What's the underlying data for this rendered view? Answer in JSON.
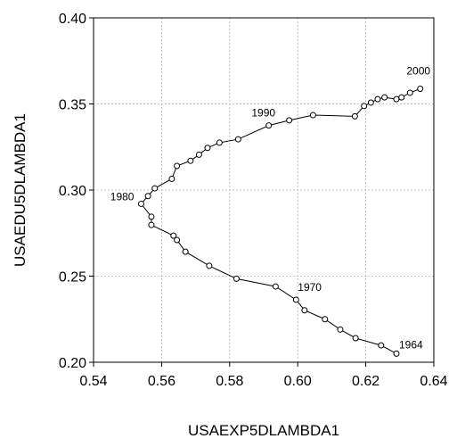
{
  "chart_data": {
    "type": "scatter",
    "title": "",
    "xlabel": "USAEXP5DLAMBDA1",
    "ylabel": "USAEDU5DLAMBDA1",
    "xlim": [
      0.54,
      0.64
    ],
    "ylim": [
      0.2,
      0.4
    ],
    "x_ticks": [
      "0.54",
      "0.56",
      "0.58",
      "0.60",
      "0.62",
      "0.64"
    ],
    "y_ticks": [
      "0.20",
      "0.25",
      "0.30",
      "0.35",
      "0.40"
    ],
    "x_tick_values": [
      0.54,
      0.56,
      0.58,
      0.6,
      0.62,
      0.64
    ],
    "y_tick_values": [
      0.2,
      0.25,
      0.3,
      0.35,
      0.4
    ],
    "grid": true,
    "connected": true,
    "marker": "open-circle",
    "series": [
      {
        "x": [
          0.629,
          0.6245,
          0.617,
          0.6125,
          0.608,
          0.602,
          0.5995,
          0.5935,
          0.582,
          0.574,
          0.567,
          0.5645,
          0.5635,
          0.557,
          0.557,
          0.554,
          0.556,
          0.558,
          0.563,
          0.5645,
          0.5685,
          0.571,
          0.5735,
          0.577,
          0.5825,
          0.5915,
          0.5975,
          0.6045,
          0.6168,
          0.6195,
          0.6215,
          0.6235,
          0.6255,
          0.629,
          0.6305,
          0.633,
          0.636
        ],
        "y": [
          0.205,
          0.2098,
          0.214,
          0.219,
          0.225,
          0.2302,
          0.2363,
          0.244,
          0.2485,
          0.256,
          0.2642,
          0.271,
          0.2735,
          0.2797,
          0.2845,
          0.292,
          0.2965,
          0.301,
          0.3065,
          0.314,
          0.317,
          0.3205,
          0.3245,
          0.3275,
          0.3295,
          0.3375,
          0.3405,
          0.3435,
          0.3428,
          0.3488,
          0.3508,
          0.3528,
          0.3538,
          0.3528,
          0.3538,
          0.3565,
          0.3588
        ]
      }
    ],
    "annotations": [
      {
        "text": "1964",
        "x": 0.629,
        "y": 0.205
      },
      {
        "text": "1970",
        "x": 0.5995,
        "y": 0.2363
      },
      {
        "text": "1980",
        "x": 0.554,
        "y": 0.292
      },
      {
        "text": "1990",
        "x": 0.5915,
        "y": 0.3375
      },
      {
        "text": "2000",
        "x": 0.636,
        "y": 0.3588
      }
    ],
    "colors": {
      "line": "#000000",
      "grid": "#b5b5b5",
      "frame": "#000000"
    }
  }
}
